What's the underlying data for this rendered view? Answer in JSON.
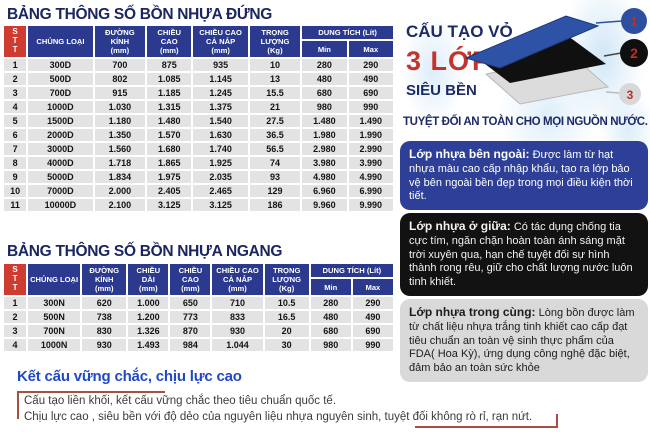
{
  "colors": {
    "header_navy": "#2b3a8f",
    "stt_red": "#ce3b31",
    "title_navy": "#1b2560",
    "accent_red": "#c5342c",
    "footer_blue": "#2149c5",
    "quote_border": "#a8503f",
    "row_gray": "#e3e3e3",
    "box_blue": "#2d3f96",
    "box_black": "#121212",
    "box_gray": "#d9d9d9"
  },
  "spec_tables": [
    {
      "id": "vertical",
      "title": "BẢNG THÔNG SỐ BỒN NHỰA ĐỨNG",
      "stt_header": "STT",
      "columns": [
        {
          "label": "CHỦNG LOẠI",
          "unit": ""
        },
        {
          "label": "ĐƯỜNG KÍNH",
          "unit": "(mm)"
        },
        {
          "label": "CHIỀU CAO",
          "unit": "(mm)"
        },
        {
          "label": "CHIỀU CAO CẢ NẮP",
          "unit": "(mm)"
        },
        {
          "label": "TRỌNG LƯỢNG",
          "unit": "(Kg)"
        }
      ],
      "capacity": {
        "label": "DUNG TÍCH (Lít)",
        "min": "Min",
        "max": "Max"
      },
      "rows": [
        [
          "1",
          "300D",
          "700",
          "875",
          "935",
          "10",
          "280",
          "290"
        ],
        [
          "2",
          "500D",
          "802",
          "1.085",
          "1.145",
          "13",
          "480",
          "490"
        ],
        [
          "3",
          "700D",
          "915",
          "1.185",
          "1.245",
          "15.5",
          "680",
          "690"
        ],
        [
          "4",
          "1000D",
          "1.030",
          "1.315",
          "1.375",
          "21",
          "980",
          "990"
        ],
        [
          "5",
          "1500D",
          "1.180",
          "1.480",
          "1.540",
          "27.5",
          "1.480",
          "1.490"
        ],
        [
          "6",
          "2000D",
          "1.350",
          "1.570",
          "1.630",
          "36.5",
          "1.980",
          "1.990"
        ],
        [
          "7",
          "3000D",
          "1.560",
          "1.680",
          "1.740",
          "56.5",
          "2.980",
          "2.990"
        ],
        [
          "8",
          "4000D",
          "1.718",
          "1.865",
          "1.925",
          "74",
          "3.980",
          "3.990"
        ],
        [
          "9",
          "5000D",
          "1.834",
          "1.975",
          "2.035",
          "93",
          "4.980",
          "4.990"
        ],
        [
          "10",
          "7000D",
          "2.000",
          "2.405",
          "2.465",
          "129",
          "6.960",
          "6.990"
        ],
        [
          "11",
          "10000D",
          "2.100",
          "3.125",
          "3.125",
          "186",
          "9.960",
          "9.990"
        ]
      ]
    },
    {
      "id": "horizontal",
      "title": "BẢNG THÔNG SỐ BỒN NHỰA NGANG",
      "stt_header": "STT",
      "columns": [
        {
          "label": "CHỦNG LOẠI",
          "unit": ""
        },
        {
          "label": "ĐƯỜNG KÍNH",
          "unit": "(mm)"
        },
        {
          "label": "CHIỀU DÀI",
          "unit": "(mm)"
        },
        {
          "label": "CHIỀU CAO",
          "unit": "(mm)"
        },
        {
          "label": "CHIỀU CAO CẢ NẮP",
          "unit": "(mm)"
        },
        {
          "label": "TRỌNG LƯỢNG",
          "unit": "(Kg)"
        }
      ],
      "capacity": {
        "label": "DUNG TÍCH (Lít)",
        "min": "Min",
        "max": "Max"
      },
      "rows": [
        [
          "1",
          "300N",
          "620",
          "1.000",
          "650",
          "710",
          "10.5",
          "280",
          "290"
        ],
        [
          "2",
          "500N",
          "738",
          "1.200",
          "773",
          "833",
          "16.5",
          "480",
          "490"
        ],
        [
          "3",
          "700N",
          "830",
          "1.326",
          "870",
          "930",
          "20",
          "680",
          "690"
        ],
        [
          "4",
          "1000N",
          "930",
          "1.493",
          "984",
          "1.044",
          "30",
          "980",
          "990"
        ]
      ]
    }
  ],
  "shell": {
    "line1": "CẤU TẠO VỎ",
    "line2": "3 LỚP",
    "line3": "SIÊU BỀN",
    "safety": "TUYỆT ĐỐI AN TOÀN CHO MỌI NGUỒN NƯỚC.",
    "layers": [
      {
        "num": "1",
        "label": "Lớp nhựa bên ngoài:",
        "text": "Được làm từ hạt nhựa màu cao cấp nhập khẩu, tạo ra lớp bảo vệ bên ngoài bền đẹp trong mọi điều kiện thời tiết."
      },
      {
        "num": "2",
        "label": "Lớp nhựa ở giữa:",
        "text": "Có tác dụng chống tia cực tím, ngăn chặn hoàn toàn ánh sáng mặt trời xuyên qua, hạn chế tuyệt đối sự hình thành rong rêu, giữ cho chất lượng nước luôn tinh khiết."
      },
      {
        "num": "3",
        "label": "Lớp nhựa trong cùng:",
        "text": "Lòng bồn được làm từ chất liệu nhựa trắng tinh khiết cao cấp đạt tiêu chuẩn an toàn vệ sinh thực phẩm của FDA( Hoa Kỳ), ứng dụng công nghệ đặc biệt, đảm bảo an toàn sức khỏe"
      }
    ]
  },
  "footer": {
    "heading": "Kết cấu vững chắc, chịu lực cao",
    "line1": "Cấu tạo liền khối, kết cấu vững chắc theo tiêu chuẩn quốc tế.",
    "line2": "Chịu lực cao , siêu bền với độ dẻo của nguyên liệu nhựa nguyên sinh, tuyệt đối không rò rỉ, rạn nứt."
  }
}
